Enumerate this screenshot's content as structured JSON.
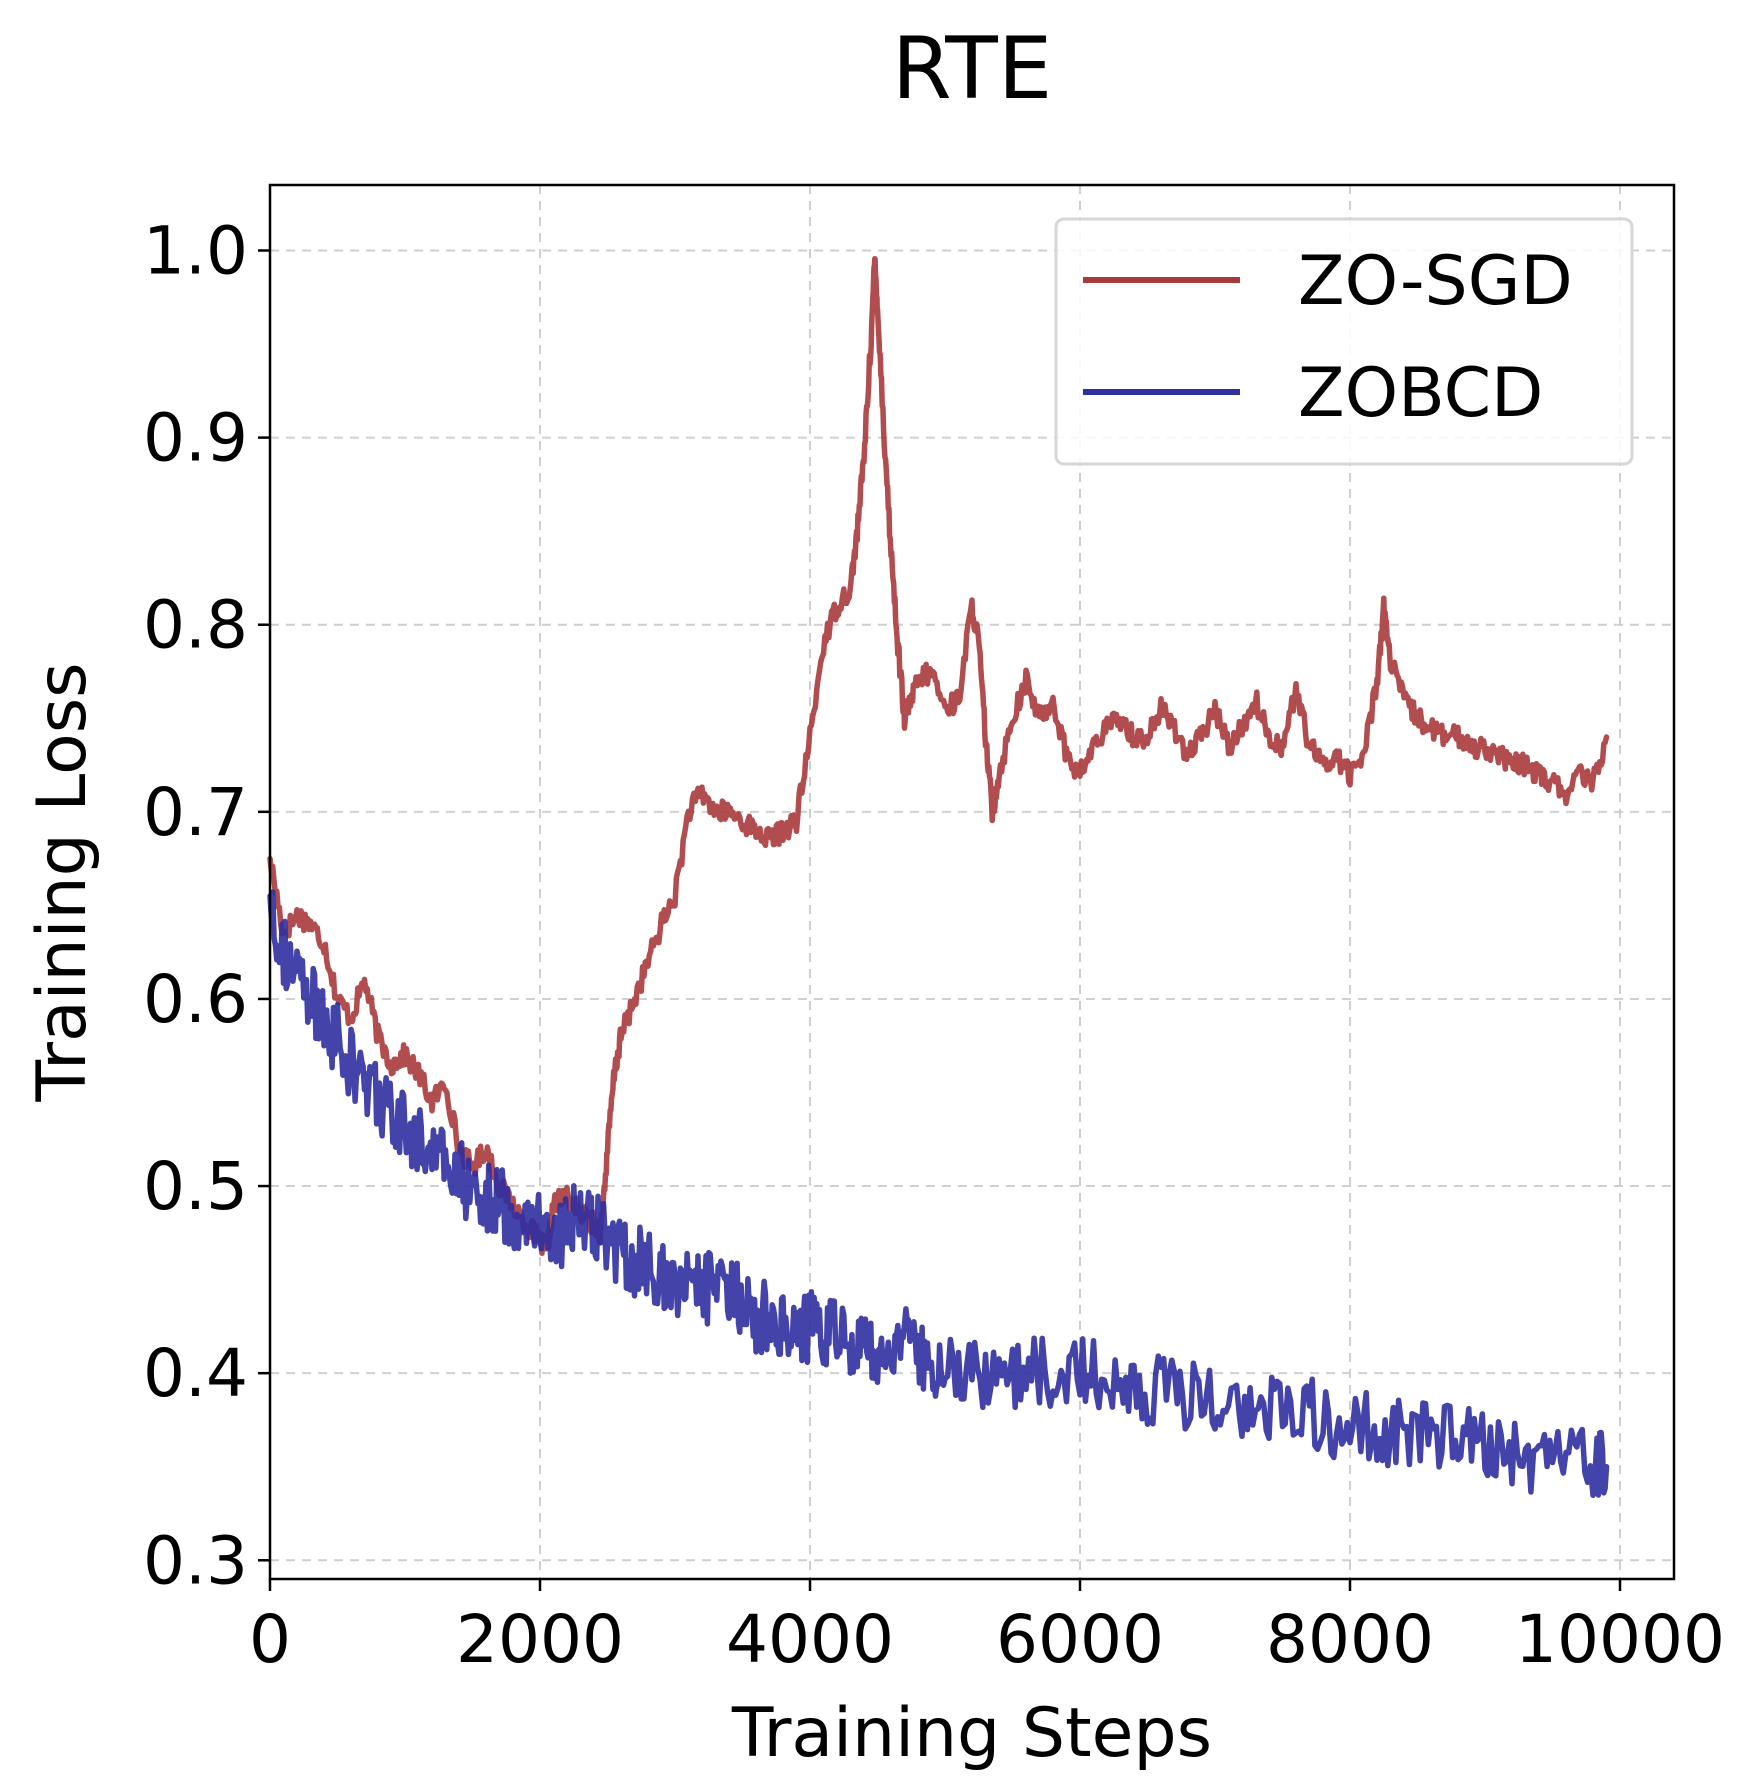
{
  "chart_data": {
    "type": "line",
    "title": "RTE",
    "xlabel": "Training Steps",
    "ylabel": "Training Loss",
    "xlim": [
      0,
      10400
    ],
    "ylim": [
      0.29,
      1.035
    ],
    "xticks": [
      0,
      2000,
      4000,
      6000,
      8000,
      10000
    ],
    "xtick_labels": [
      "0",
      "2000",
      "4000",
      "6000",
      "8000",
      "10000"
    ],
    "yticks": [
      0.3,
      0.4,
      0.5,
      0.6,
      0.7,
      0.8,
      0.9,
      1.0
    ],
    "ytick_labels": [
      "0.3",
      "0.4",
      "0.5",
      "0.6",
      "0.7",
      "0.8",
      "0.9",
      "1.0"
    ],
    "grid": true,
    "legend_position": "top-right",
    "series": [
      {
        "name": "ZO-SGD",
        "color": "#a83a3c",
        "noise": 0.006,
        "x": [
          0,
          100,
          200,
          300,
          400,
          500,
          600,
          700,
          800,
          900,
          1000,
          1100,
          1200,
          1300,
          1400,
          1500,
          1600,
          1700,
          1800,
          1900,
          2000,
          2050,
          2100,
          2200,
          2300,
          2400,
          2450,
          2500,
          2550,
          2600,
          2700,
          2800,
          2900,
          3000,
          3100,
          3200,
          3300,
          3400,
          3500,
          3600,
          3700,
          3800,
          3900,
          4000,
          4100,
          4200,
          4300,
          4350,
          4400,
          4450,
          4480,
          4500,
          4550,
          4600,
          4650,
          4700,
          4750,
          4800,
          4900,
          5000,
          5100,
          5200,
          5250,
          5300,
          5350,
          5400,
          5500,
          5600,
          5700,
          5800,
          5900,
          6000,
          6100,
          6200,
          6300,
          6400,
          6500,
          6600,
          6700,
          6800,
          6900,
          7000,
          7100,
          7200,
          7300,
          7400,
          7500,
          7600,
          7700,
          7800,
          7900,
          8000,
          8100,
          8200,
          8250,
          8300,
          8400,
          8500,
          8600,
          8700,
          8800,
          8900,
          9000,
          9100,
          9200,
          9300,
          9400,
          9500,
          9600,
          9700,
          9800,
          9900
        ],
        "y": [
          0.675,
          0.635,
          0.645,
          0.64,
          0.63,
          0.6,
          0.59,
          0.61,
          0.58,
          0.565,
          0.57,
          0.56,
          0.545,
          0.555,
          0.52,
          0.51,
          0.52,
          0.5,
          0.49,
          0.48,
          0.47,
          0.465,
          0.49,
          0.495,
          0.485,
          0.48,
          0.475,
          0.52,
          0.56,
          0.58,
          0.6,
          0.62,
          0.64,
          0.655,
          0.7,
          0.71,
          0.7,
          0.7,
          0.695,
          0.69,
          0.685,
          0.69,
          0.695,
          0.74,
          0.79,
          0.81,
          0.82,
          0.85,
          0.89,
          0.95,
          0.995,
          0.97,
          0.9,
          0.84,
          0.79,
          0.75,
          0.76,
          0.77,
          0.775,
          0.755,
          0.76,
          0.81,
          0.79,
          0.74,
          0.7,
          0.72,
          0.75,
          0.77,
          0.75,
          0.76,
          0.73,
          0.72,
          0.735,
          0.745,
          0.75,
          0.74,
          0.74,
          0.755,
          0.745,
          0.73,
          0.74,
          0.755,
          0.735,
          0.745,
          0.76,
          0.74,
          0.735,
          0.765,
          0.735,
          0.725,
          0.73,
          0.72,
          0.73,
          0.77,
          0.81,
          0.78,
          0.76,
          0.75,
          0.745,
          0.74,
          0.74,
          0.735,
          0.735,
          0.73,
          0.725,
          0.725,
          0.72,
          0.715,
          0.71,
          0.72,
          0.715,
          0.74
        ]
      },
      {
        "name": "ZOBCD",
        "color": "#2f2fa0",
        "noise": 0.02,
        "x": [
          0,
          100,
          200,
          300,
          400,
          500,
          600,
          700,
          800,
          900,
          1000,
          1100,
          1200,
          1300,
          1400,
          1500,
          1600,
          1700,
          1800,
          1900,
          2000,
          2100,
          2200,
          2300,
          2400,
          2500,
          2600,
          2700,
          2800,
          2900,
          3000,
          3100,
          3200,
          3300,
          3400,
          3500,
          3600,
          3700,
          3800,
          3900,
          4000,
          4100,
          4200,
          4300,
          4400,
          4500,
          4600,
          4700,
          4800,
          4900,
          5000,
          5200,
          5400,
          5600,
          5800,
          6000,
          6200,
          6400,
          6600,
          6800,
          7000,
          7200,
          7400,
          7600,
          7800,
          8000,
          8200,
          8400,
          8600,
          8800,
          9000,
          9200,
          9400,
          9600,
          9800,
          9900
        ],
        "y": [
          0.655,
          0.625,
          0.61,
          0.6,
          0.585,
          0.58,
          0.565,
          0.555,
          0.55,
          0.535,
          0.53,
          0.525,
          0.52,
          0.51,
          0.505,
          0.5,
          0.495,
          0.49,
          0.485,
          0.48,
          0.48,
          0.475,
          0.478,
          0.485,
          0.48,
          0.47,
          0.465,
          0.46,
          0.455,
          0.45,
          0.45,
          0.445,
          0.45,
          0.44,
          0.44,
          0.44,
          0.43,
          0.43,
          0.43,
          0.425,
          0.425,
          0.42,
          0.42,
          0.415,
          0.415,
          0.415,
          0.41,
          0.415,
          0.41,
          0.405,
          0.4,
          0.4,
          0.4,
          0.4,
          0.4,
          0.405,
          0.4,
          0.395,
          0.39,
          0.39,
          0.385,
          0.385,
          0.38,
          0.38,
          0.375,
          0.37,
          0.37,
          0.37,
          0.365,
          0.365,
          0.36,
          0.355,
          0.355,
          0.35,
          0.35,
          0.35
        ]
      }
    ]
  }
}
